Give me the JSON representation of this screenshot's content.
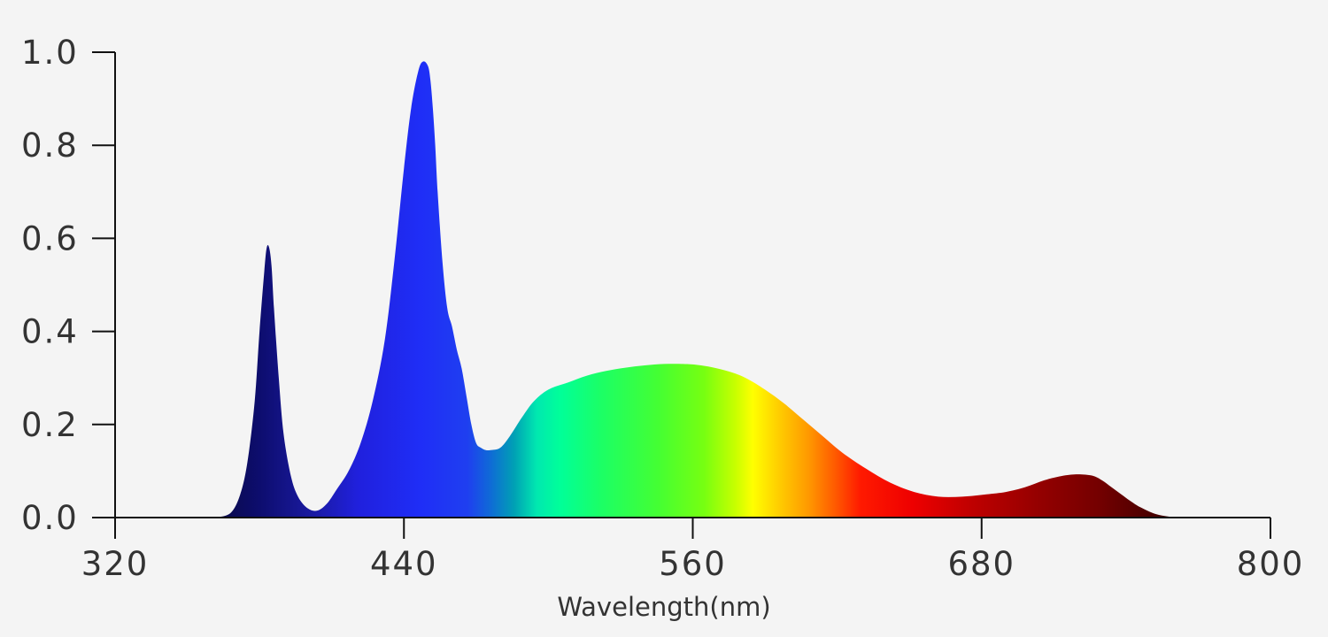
{
  "chart_data": {
    "type": "area",
    "title": "",
    "xlabel": "Wavelength(nm)",
    "ylabel": "",
    "xlim": [
      320,
      800
    ],
    "ylim": [
      0,
      1.0
    ],
    "x_ticks": [
      320,
      440,
      560,
      680,
      800
    ],
    "x_tick_labels": [
      "320",
      "440",
      "560",
      "680",
      "800"
    ],
    "y_ticks": [
      0,
      0.2,
      0.4,
      0.6,
      0.8,
      1.0
    ],
    "y_tick_labels": [
      "0.0",
      "0.2",
      "0.4",
      "0.6",
      "0.8",
      "1.0"
    ],
    "grid": false,
    "legend": "none",
    "series": [
      {
        "x": [
          362,
          368,
          372,
          375,
          378,
          380,
          382,
          383,
          384,
          385,
          386,
          388,
          390,
          393,
          396,
          400,
          404,
          408,
          412,
          417,
          422,
          427,
          432,
          436,
          440,
          443,
          446,
          448,
          450,
          451,
          452,
          453,
          454,
          456,
          458,
          460,
          462,
          464,
          466,
          468,
          470,
          472,
          474,
          476,
          480,
          484,
          489,
          494,
          500,
          508,
          516,
          524,
          532,
          540,
          548,
          556,
          562,
          568,
          575,
          582,
          590,
          598,
          606,
          614,
          622,
          632,
          642,
          652,
          662,
          672,
          682,
          690,
          698,
          706,
          714,
          720,
          726,
          730,
          734,
          738,
          742,
          746,
          752,
          758,
          765,
          772
        ],
        "y": [
          0.0,
          0.01,
          0.05,
          0.12,
          0.25,
          0.4,
          0.53,
          0.58,
          0.58,
          0.54,
          0.45,
          0.3,
          0.18,
          0.09,
          0.045,
          0.02,
          0.015,
          0.03,
          0.06,
          0.1,
          0.16,
          0.25,
          0.38,
          0.55,
          0.75,
          0.88,
          0.96,
          0.98,
          0.97,
          0.94,
          0.88,
          0.8,
          0.7,
          0.55,
          0.45,
          0.41,
          0.36,
          0.32,
          0.26,
          0.2,
          0.16,
          0.15,
          0.145,
          0.145,
          0.15,
          0.175,
          0.215,
          0.25,
          0.275,
          0.29,
          0.305,
          0.315,
          0.322,
          0.327,
          0.33,
          0.33,
          0.328,
          0.323,
          0.314,
          0.3,
          0.275,
          0.245,
          0.21,
          0.175,
          0.14,
          0.105,
          0.075,
          0.055,
          0.045,
          0.045,
          0.05,
          0.055,
          0.065,
          0.08,
          0.09,
          0.093,
          0.09,
          0.08,
          0.065,
          0.05,
          0.035,
          0.022,
          0.008,
          0.002,
          0.0,
          0.0
        ]
      }
    ]
  }
}
